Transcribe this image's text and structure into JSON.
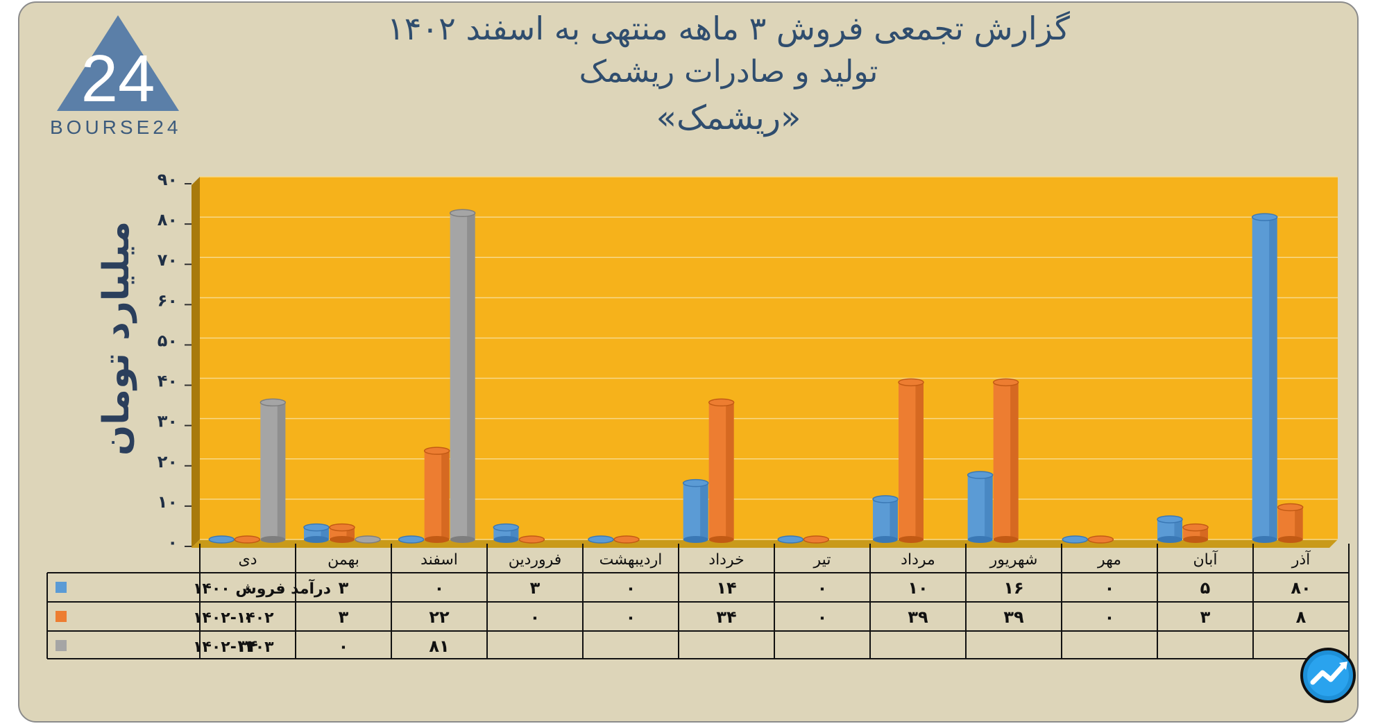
{
  "header": {
    "title_line1": "گزارش تجمعی فروش ۳ ماهه منتهی به اسفند ۱۴۰۲",
    "title_line2": "تولید و صادرات ریشمک",
    "title_line3": "«ریشمک»"
  },
  "brand": {
    "logo_text": "BOURSE24",
    "logo_numeral": "24"
  },
  "colors": {
    "plot_bg": "#f6b21b",
    "panel_bg": "#ddd5b9",
    "series_1400": "#5b9bd5",
    "series_1401_1402": "#ed7d31",
    "series_1402_1403": "#a5a5a5",
    "title": "#2f4d6e"
  },
  "chart_data": {
    "type": "bar",
    "title": "گزارش تجمعی فروش ۳ ماهه منتهی به اسفند ۱۴۰۲",
    "ylabel": "میلیارد تومان",
    "xlabel": "",
    "ylim": [
      0,
      90
    ],
    "y_ticks": [
      "۰",
      "۱۰",
      "۲۰",
      "۳۰",
      "۴۰",
      "۵۰",
      "۶۰",
      "۷۰",
      "۸۰",
      "۹۰"
    ],
    "y_tick_values": [
      0,
      10,
      20,
      30,
      40,
      50,
      60,
      70,
      80,
      90
    ],
    "grid": true,
    "categories": [
      "دی",
      "بهمن",
      "اسفند",
      "فروردین",
      "اردیبهشت",
      "خرداد",
      "تیر",
      "مرداد",
      "شهریور",
      "مهر",
      "آبان",
      "آذر"
    ],
    "series": [
      {
        "name": "درآمد فروش ۱۴۰۰",
        "values": [
          0,
          3,
          0,
          3,
          0,
          14,
          0,
          10,
          16,
          0,
          5,
          80
        ],
        "labels": [
          "۰",
          "۳",
          "۰",
          "۳",
          "۰",
          "۱۴",
          "۰",
          "۱۰",
          "۱۶",
          "۰",
          "۵",
          "۸۰"
        ]
      },
      {
        "name": "۱۴۰۲-۱۴۰۲",
        "values": [
          0,
          3,
          22,
          0,
          0,
          34,
          0,
          39,
          39,
          0,
          3,
          8
        ],
        "labels": [
          "۰",
          "۳",
          "۲۲",
          "۰",
          "۰",
          "۳۴",
          "۰",
          "۳۹",
          "۳۹",
          "۰",
          "۳",
          "۸"
        ]
      },
      {
        "name": "۱۴۰۲-۱۴۰۳",
        "values": [
          34,
          0,
          81,
          null,
          null,
          null,
          null,
          null,
          null,
          null,
          null,
          null
        ],
        "labels": [
          "۳۴",
          "۰",
          "۸۱",
          "",
          "",
          "",
          "",
          "",
          "",
          "",
          "",
          ""
        ]
      }
    ]
  }
}
